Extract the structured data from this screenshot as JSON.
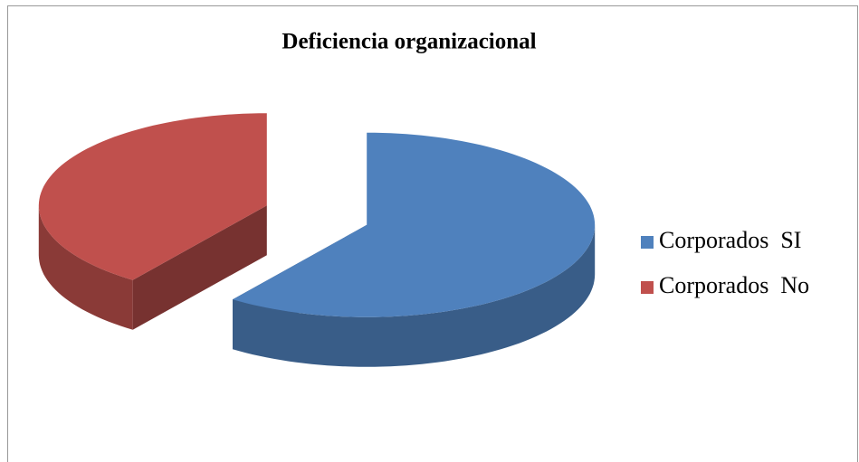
{
  "chart_data": {
    "type": "pie",
    "title": "Deficiencia organizacional",
    "categories": [
      "Corporados  SI",
      "Corporados  No"
    ],
    "values": [
      60,
      40
    ],
    "colors": [
      "#4f81bd",
      "#c0504d"
    ],
    "legend": "right"
  }
}
